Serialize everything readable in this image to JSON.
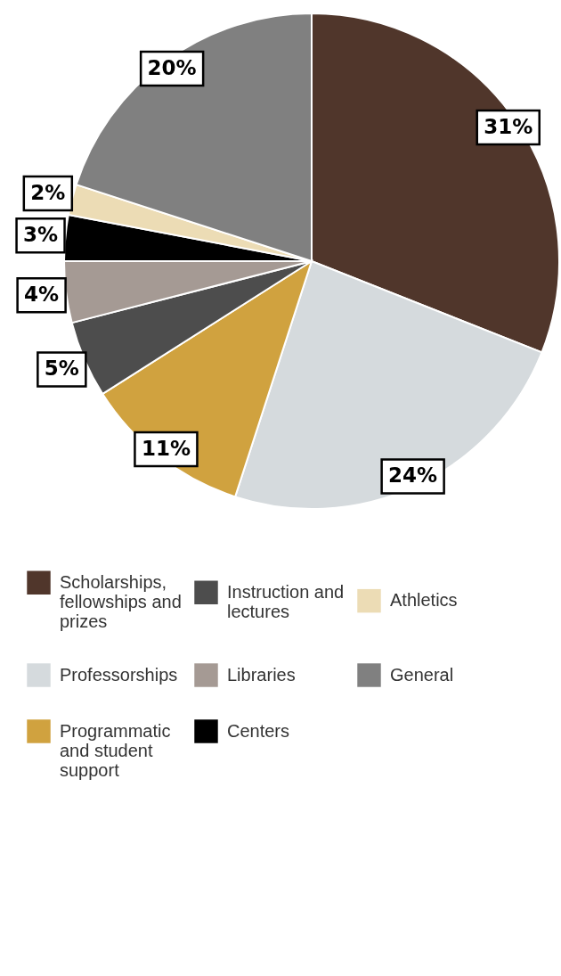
{
  "chart_data": {
    "type": "pie",
    "categories": [
      "Scholarships, fellowships and prizes",
      "Professorships",
      "Programmatic and student support",
      "Instruction and lectures",
      "Libraries",
      "Centers",
      "Athletics",
      "General"
    ],
    "values": [
      31,
      24,
      11,
      5,
      4,
      3,
      2,
      20
    ],
    "value_labels": [
      "31%",
      "24%",
      "11%",
      "5%",
      "4%",
      "3%",
      "2%",
      "20%"
    ],
    "colors": [
      "#50362b",
      "#d5dadd",
      "#d0a23f",
      "#4d4d4d",
      "#a59a94",
      "#000000",
      "#ecdcb5",
      "#808080"
    ],
    "legend": "bottom"
  }
}
